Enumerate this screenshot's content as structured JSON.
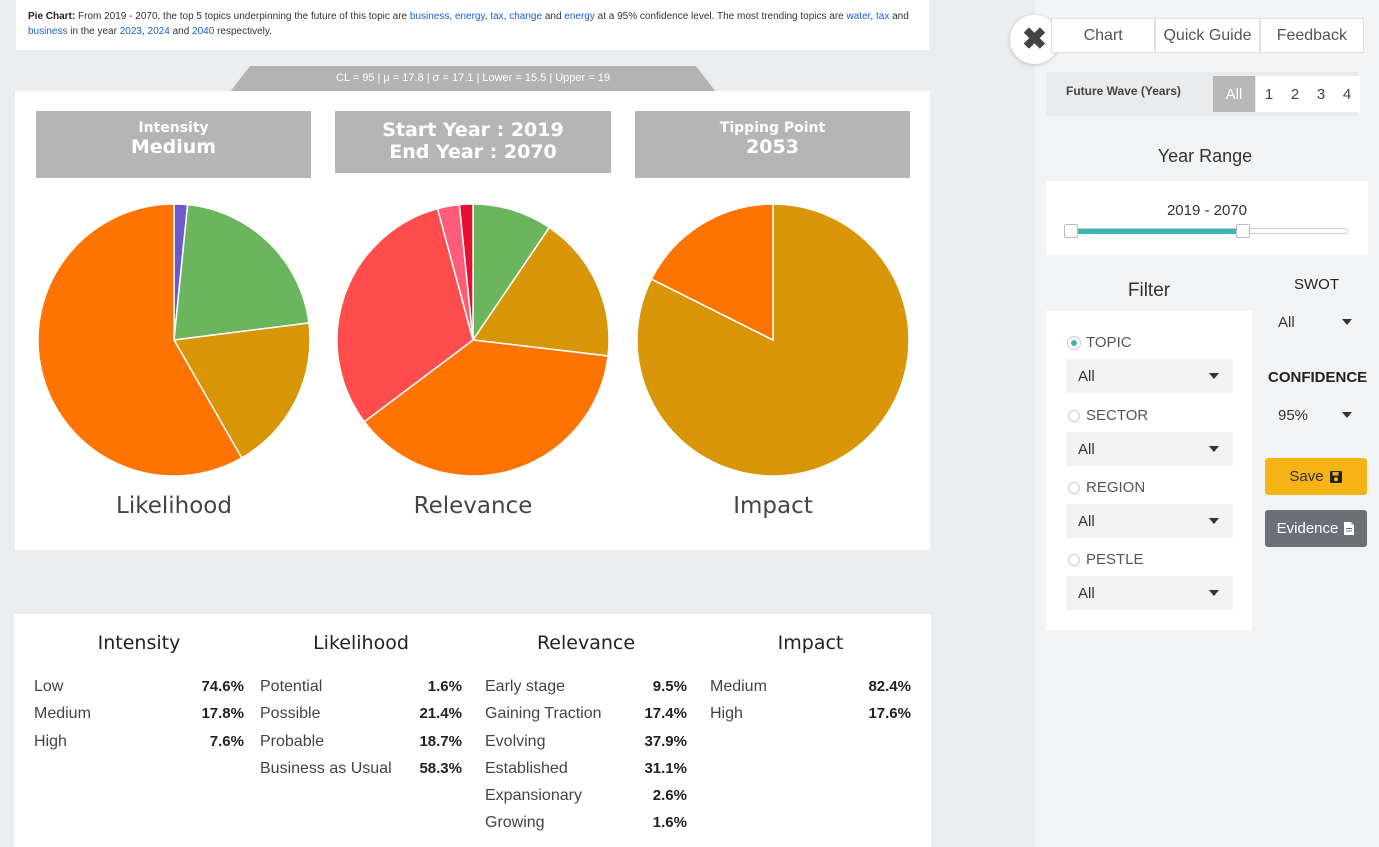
{
  "summary": {
    "label": "Pie Chart:",
    "t1": " From 2019 - 2070, the top 5 topics underpinning the future of this topic are ",
    "topics": [
      "business",
      "energy",
      "tax",
      "change",
      "energy"
    ],
    "t2": " at a 95% confidence level. The most trending topics are ",
    "trending": [
      "water",
      "tax",
      "business"
    ],
    "t3": " in the year ",
    "years": [
      "2023",
      "2024",
      "2040"
    ],
    "t4": " respectively.",
    "sep_comma": ", ",
    "sep_and": " and "
  },
  "stats_tab": "CL = 95 | μ = 17.8 | σ = 17.1 | Lower = 15.5 | Upper = 19",
  "headers": {
    "intensity_label": "Intensity",
    "intensity_value": "Medium",
    "start_year": "Start Year : 2019",
    "end_year": "End Year : 2070",
    "tipping_label": "Tipping Point",
    "tipping_value": "2053"
  },
  "chart_data": [
    {
      "type": "pie",
      "title": "Likelihood",
      "categories": [
        "Potential",
        "Possible",
        "Probable",
        "Business as Usual"
      ],
      "values": [
        1.6,
        21.4,
        18.7,
        58.3
      ],
      "colors": [
        "#6a5acd",
        "#6ab55e",
        "#d89505",
        "#ff7400"
      ]
    },
    {
      "type": "pie",
      "title": "Relevance",
      "categories": [
        "Early stage",
        "Gaining Traction",
        "Evolving",
        "Established",
        "Expansionary",
        "Growing"
      ],
      "values": [
        9.5,
        17.4,
        37.9,
        31.1,
        2.6,
        1.6
      ],
      "colors": [
        "#6ab55e",
        "#d89505",
        "#ff7400",
        "#ff4d4d",
        "#ff5c7a",
        "#e8102e"
      ]
    },
    {
      "type": "pie",
      "title": "Impact",
      "categories": [
        "Medium",
        "High"
      ],
      "values": [
        82.4,
        17.6
      ],
      "colors": [
        "#d89505",
        "#ff7400"
      ]
    }
  ],
  "table": {
    "intensity": {
      "title": "Intensity",
      "rows": [
        [
          "Low",
          "74.6%"
        ],
        [
          "Medium",
          "17.8%"
        ],
        [
          "High",
          "7.6%"
        ]
      ]
    },
    "likelihood": {
      "title": "Likelihood",
      "rows": [
        [
          "Potential",
          "1.6%"
        ],
        [
          "Possible",
          "21.4%"
        ],
        [
          "Probable",
          "18.7%"
        ],
        [
          "Business as Usual",
          "58.3%"
        ]
      ]
    },
    "relevance": {
      "title": "Relevance",
      "rows": [
        [
          "Early stage",
          "9.5%"
        ],
        [
          "Gaining Traction",
          "17.4%"
        ],
        [
          "Evolving",
          "37.9%"
        ],
        [
          "Established",
          "31.1%"
        ],
        [
          "Expansionary",
          "2.6%"
        ],
        [
          "Growing",
          "1.6%"
        ]
      ]
    },
    "impact": {
      "title": "Impact",
      "rows": [
        [
          "Medium",
          "82.4%"
        ],
        [
          "High",
          "17.6%"
        ]
      ]
    }
  },
  "panel": {
    "close_icon": "✖",
    "tabs": [
      "Chart",
      "Quick Guide",
      "Feedback"
    ],
    "wave_label": "Future Wave (Years)",
    "wave_options": [
      "All",
      "1",
      "2",
      "3",
      "4"
    ],
    "year_range_title": "Year Range",
    "year_range_value": "2019 - 2070",
    "year_slider": {
      "min": 2019,
      "max": 2070,
      "low_fraction": 0.0,
      "high_fraction": 0.63
    },
    "filter_title": "Filter",
    "filters": [
      {
        "label": "TOPIC",
        "value": "All",
        "selected": true
      },
      {
        "label": "SECTOR",
        "value": "All",
        "selected": false
      },
      {
        "label": "REGION",
        "value": "All",
        "selected": false
      },
      {
        "label": "PESTLE",
        "value": "All",
        "selected": false
      }
    ],
    "swot_label": "SWOT",
    "swot_value": "All",
    "confidence_label": "CONFIDENCE",
    "confidence_value": "95%",
    "save_label": "Save",
    "evidence_label": "Evidence",
    "accent": "#3cb4b0",
    "save_color": "#f5b316",
    "evidence_color": "#6b7077"
  }
}
